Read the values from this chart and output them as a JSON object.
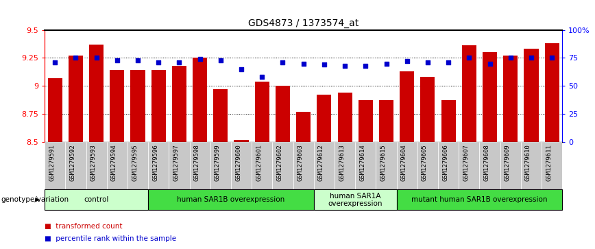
{
  "title": "GDS4873 / 1373574_at",
  "samples": [
    "GSM1279591",
    "GSM1279592",
    "GSM1279593",
    "GSM1279594",
    "GSM1279595",
    "GSM1279596",
    "GSM1279597",
    "GSM1279598",
    "GSM1279599",
    "GSM1279600",
    "GSM1279601",
    "GSM1279602",
    "GSM1279603",
    "GSM1279612",
    "GSM1279613",
    "GSM1279614",
    "GSM1279615",
    "GSM1279604",
    "GSM1279605",
    "GSM1279606",
    "GSM1279607",
    "GSM1279608",
    "GSM1279609",
    "GSM1279610",
    "GSM1279611"
  ],
  "bar_values": [
    9.07,
    9.27,
    9.37,
    9.14,
    9.14,
    9.14,
    9.18,
    9.25,
    8.97,
    8.52,
    9.04,
    9.0,
    8.77,
    8.92,
    8.94,
    8.87,
    8.87,
    9.13,
    9.08,
    8.87,
    9.36,
    9.3,
    9.27,
    9.33,
    9.38
  ],
  "dot_values": [
    71,
    75,
    75,
    73,
    73,
    71,
    71,
    74,
    73,
    65,
    58,
    71,
    70,
    69,
    68,
    68,
    70,
    72,
    71,
    71,
    75,
    70,
    75,
    75,
    75
  ],
  "ylim": [
    8.5,
    9.5
  ],
  "y2lim": [
    0,
    100
  ],
  "yticks": [
    8.5,
    8.75,
    9.0,
    9.25,
    9.5
  ],
  "ytick_labels": [
    "8.5",
    "8.75",
    "9",
    "9.25",
    "9.5"
  ],
  "y2ticks": [
    0,
    25,
    50,
    75,
    100
  ],
  "y2tick_labels": [
    "0",
    "25",
    "50",
    "75",
    "100%"
  ],
  "bar_color": "#cc0000",
  "dot_color": "#0000cc",
  "bg_color": "#ffffff",
  "xtick_bg": "#c8c8c8",
  "groups": [
    {
      "label": "control",
      "start": 0,
      "end": 5,
      "color": "#ccffcc"
    },
    {
      "label": "human SAR1B overexpression",
      "start": 5,
      "end": 13,
      "color": "#44dd44"
    },
    {
      "label": "human SAR1A\noverexpression",
      "start": 13,
      "end": 17,
      "color": "#ccffcc"
    },
    {
      "label": "mutant human SAR1B overexpression",
      "start": 17,
      "end": 25,
      "color": "#44dd44"
    }
  ],
  "genotype_label": "genotype/variation",
  "legend_bar_label": "transformed count",
  "legend_dot_label": "percentile rank within the sample"
}
